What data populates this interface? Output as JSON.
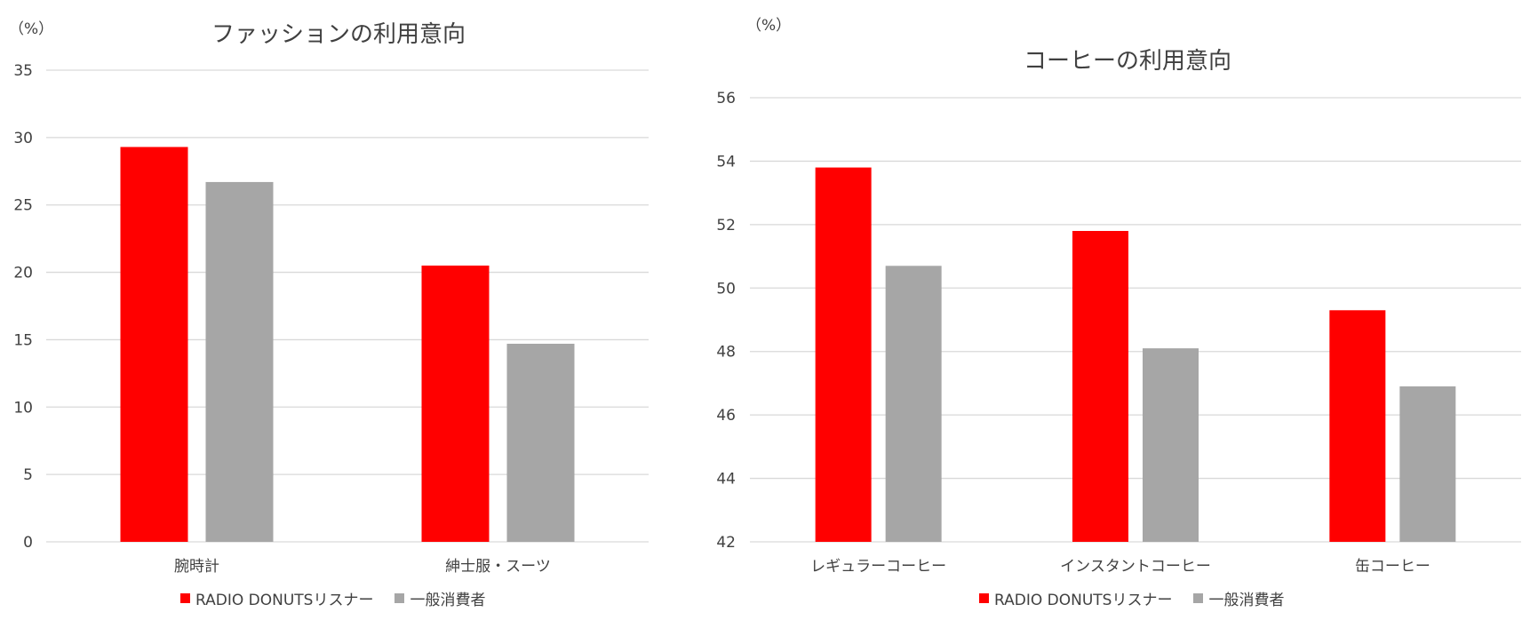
{
  "colors": {
    "listener": "#ff0000",
    "general": "#a6a6a6",
    "grid": "#d9d9d9",
    "text": "#404040"
  },
  "chart_data": [
    {
      "type": "bar",
      "title": "ファッションの利用意向",
      "unit_label": "（%）",
      "categories": [
        "腕時計",
        "紳士服・スーツ"
      ],
      "series": [
        {
          "name": "RADIO DONUTSリスナー",
          "values": [
            29.3,
            20.5
          ]
        },
        {
          "name": "一般消費者",
          "values": [
            26.7,
            14.7
          ]
        }
      ],
      "ylim": [
        0,
        35
      ],
      "yticks": [
        0,
        5,
        10,
        15,
        20,
        25,
        30,
        35
      ],
      "grid": true,
      "legend": "bottom-center"
    },
    {
      "type": "bar",
      "title": "コーヒーの利用意向",
      "unit_label": "（%）",
      "categories": [
        "レギュラーコーヒー",
        "インスタントコーヒー",
        "缶コーヒー"
      ],
      "series": [
        {
          "name": "RADIO DONUTSリスナー",
          "values": [
            53.8,
            51.8,
            49.3
          ]
        },
        {
          "name": "一般消費者",
          "values": [
            50.7,
            48.1,
            46.9
          ]
        }
      ],
      "ylim": [
        42,
        56
      ],
      "yticks": [
        42,
        44,
        46,
        48,
        50,
        52,
        54,
        56
      ],
      "grid": true,
      "legend": "bottom-center"
    }
  ]
}
